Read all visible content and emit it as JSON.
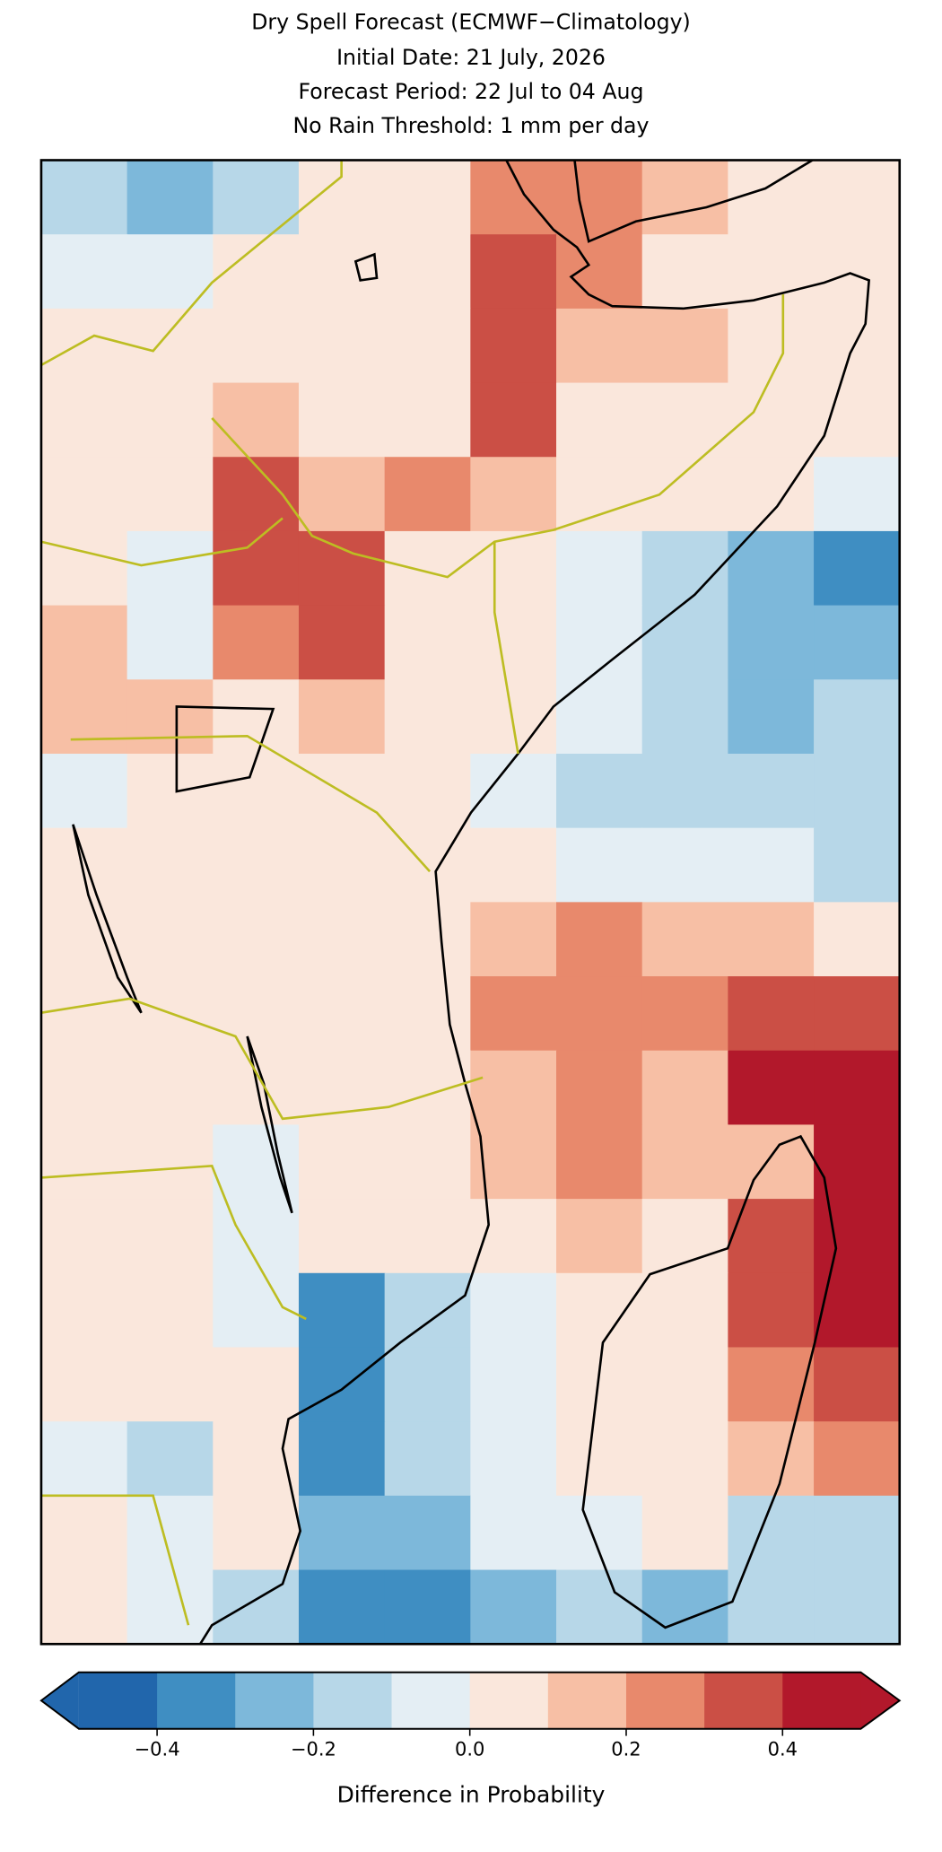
{
  "chart_data": {
    "type": "heatmap",
    "title": [
      "Dry Spell Forecast (ECMWF−Climatology)",
      "Initial Date: 21 July, 2026",
      "Forecast Period: 22 Jul to 04 Aug",
      "No Rain Threshold: 1 mm per day"
    ],
    "values": [
      [
        -0.2,
        -0.25,
        -0.15,
        0.05,
        0.05,
        0.25,
        0.2,
        0.15,
        0.05,
        0.05
      ],
      [
        -0.1,
        -0.05,
        0.0,
        0.05,
        0.05,
        0.3,
        0.25,
        0.05,
        0.05,
        0.05
      ],
      [
        0.05,
        0.05,
        0.0,
        0.05,
        0.05,
        0.3,
        0.15,
        0.1,
        0.05,
        0.05
      ],
      [
        0.05,
        0.05,
        0.15,
        0.05,
        0.05,
        0.35,
        0.05,
        0.05,
        0.05,
        0.05
      ],
      [
        0.05,
        0.05,
        0.3,
        0.15,
        0.25,
        0.15,
        0.05,
        0.05,
        0.0,
        -0.05
      ],
      [
        0.05,
        -0.05,
        0.35,
        0.3,
        0.05,
        0.0,
        -0.05,
        -0.15,
        -0.3,
        -0.35
      ],
      [
        0.1,
        -0.05,
        0.2,
        0.35,
        0.05,
        0.0,
        -0.1,
        -0.15,
        -0.25,
        -0.3
      ],
      [
        0.15,
        0.1,
        0.05,
        0.15,
        0.05,
        0.0,
        -0.1,
        -0.2,
        -0.25,
        -0.15
      ],
      [
        -0.05,
        0.05,
        0.05,
        0.05,
        0.05,
        -0.05,
        -0.15,
        -0.2,
        -0.15,
        -0.15
      ],
      [
        0.05,
        0.05,
        0.05,
        0.05,
        0.05,
        0.0,
        -0.1,
        -0.05,
        -0.1,
        -0.15
      ],
      [
        0.05,
        0.05,
        0.05,
        0.05,
        0.05,
        0.15,
        0.2,
        0.15,
        0.1,
        0.0
      ],
      [
        0.05,
        0.05,
        0.05,
        0.05,
        0.05,
        0.2,
        0.2,
        0.2,
        0.3,
        0.3
      ],
      [
        0.05,
        0.05,
        0.0,
        0.05,
        0.05,
        0.15,
        0.2,
        0.1,
        0.4,
        0.4
      ],
      [
        0.05,
        0.05,
        -0.05,
        0.05,
        0.05,
        0.1,
        0.2,
        0.1,
        0.1,
        0.45
      ],
      [
        0.05,
        0.0,
        -0.05,
        0.05,
        0.05,
        0.05,
        0.15,
        0.05,
        0.35,
        0.45
      ],
      [
        0.05,
        0.0,
        -0.05,
        -0.35,
        -0.2,
        -0.05,
        0.05,
        0.05,
        0.35,
        0.45
      ],
      [
        0.0,
        0.0,
        0.05,
        -0.35,
        -0.15,
        -0.05,
        0.05,
        0.05,
        0.25,
        0.35
      ],
      [
        -0.1,
        -0.15,
        0.0,
        -0.35,
        -0.2,
        -0.1,
        0.05,
        0.05,
        0.1,
        0.25
      ],
      [
        0.0,
        -0.05,
        0.05,
        -0.3,
        -0.25,
        -0.1,
        -0.05,
        0.05,
        -0.15,
        -0.2
      ],
      [
        0.0,
        -0.05,
        -0.15,
        -0.35,
        -0.35,
        -0.25,
        -0.2,
        -0.25,
        -0.2,
        -0.2
      ]
    ],
    "colorbar": {
      "label": "Difference in Probability",
      "bounds": [
        -0.5,
        -0.4,
        -0.3,
        -0.2,
        -0.1,
        0,
        0.1,
        0.2,
        0.3,
        0.4,
        0.5
      ],
      "colors": [
        "#2166ac",
        "#3f8ec2",
        "#7db8da",
        "#b7d7e8",
        "#e4eef4",
        "#fae7dc",
        "#f7bfa5",
        "#e8896c",
        "#cb4f45",
        "#b2182b"
      ],
      "ticks": [
        {
          "value": -0.4,
          "label": "−0.4"
        },
        {
          "value": -0.2,
          "label": "−0.2"
        },
        {
          "value": 0,
          "label": "0.0"
        },
        0.2,
        0.4
      ]
    }
  }
}
